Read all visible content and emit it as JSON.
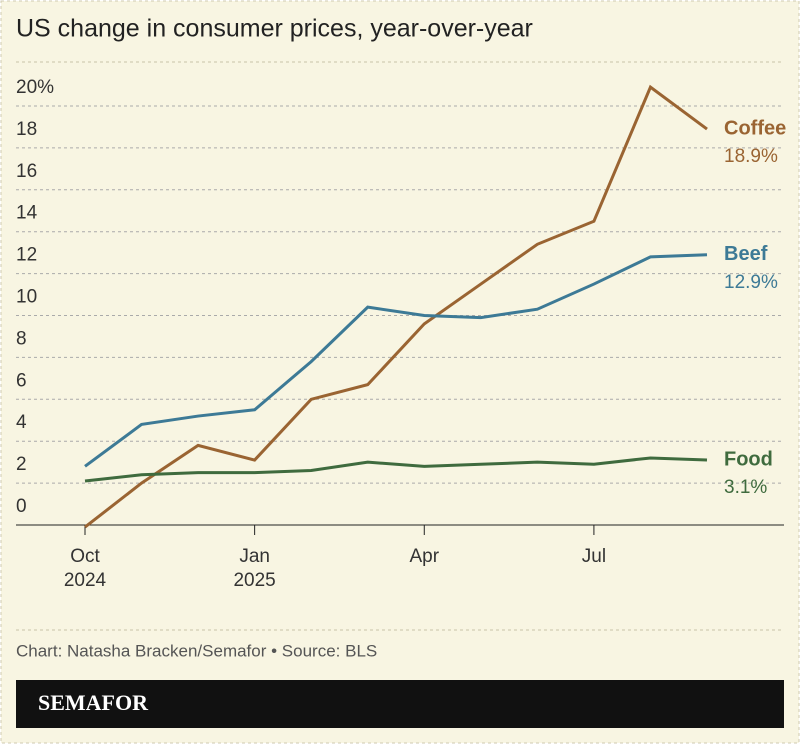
{
  "chart_data": {
    "type": "line",
    "title": "US change in consumer prices, year-over-year",
    "categories": [
      "Oct\n2024",
      null,
      null,
      "Jan\n2025",
      null,
      null,
      "Apr",
      null,
      null,
      "Jul",
      null,
      null
    ],
    "series": [
      {
        "name": "Coffee",
        "color": "#9a6432",
        "end_label": "18.9%",
        "values": [
          -0.1,
          2.0,
          3.8,
          3.1,
          6.0,
          6.7,
          9.6,
          11.5,
          13.4,
          14.5,
          20.9,
          18.9
        ]
      },
      {
        "name": "Beef",
        "color": "#3d7a96",
        "end_label": "12.9%",
        "values": [
          2.8,
          4.8,
          5.2,
          5.5,
          7.8,
          10.4,
          10.0,
          9.9,
          10.3,
          11.5,
          12.8,
          12.9
        ]
      },
      {
        "name": "Food",
        "color": "#3f6b3e",
        "end_label": "3.1%",
        "values": [
          2.1,
          2.4,
          2.5,
          2.5,
          2.6,
          3.0,
          2.8,
          2.9,
          3.0,
          2.9,
          3.2,
          3.1
        ]
      }
    ],
    "ylim": [
      0,
      22
    ],
    "yticks": [
      0,
      2,
      4,
      6,
      8,
      10,
      12,
      14,
      16,
      18,
      {
        "value": 20,
        "label": "20%"
      }
    ],
    "grid": true,
    "footer": "Chart: Natasha Bracken/Semafor • Source: BLS",
    "brand": "SEMAFOR"
  }
}
